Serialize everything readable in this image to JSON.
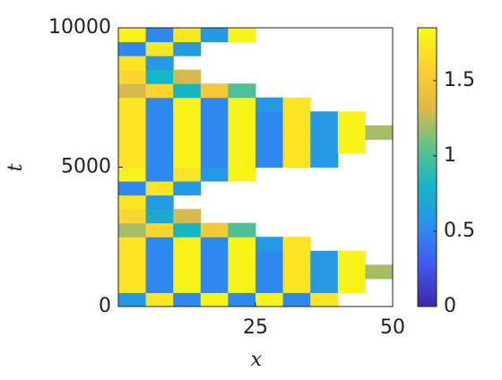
{
  "chart_data": {
    "type": "heatmap",
    "xlabel": "x",
    "ylabel": "t",
    "x": [
      2.5,
      7.5,
      12.5,
      17.5,
      22.5,
      27.5,
      32.5,
      37.5,
      42.5,
      47.5
    ],
    "y": [
      250,
      750,
      1250,
      1750,
      2250,
      2750,
      3250,
      3750,
      4250,
      4750,
      5250,
      5750,
      6250,
      6750,
      7250,
      7750,
      8250,
      8750,
      9250,
      9750
    ],
    "z": [
      [
        0.6,
        1.7,
        0.5,
        1.8,
        0.5,
        1.8,
        0.5,
        1.7,
        null,
        null
      ],
      [
        1.7,
        0.5,
        1.8,
        0.5,
        1.8,
        0.5,
        1.7,
        0.6,
        1.8,
        null
      ],
      [
        1.7,
        0.5,
        1.8,
        0.5,
        1.8,
        0.5,
        1.7,
        0.6,
        1.8,
        1.2
      ],
      [
        1.7,
        0.5,
        1.8,
        0.5,
        1.8,
        0.5,
        1.7,
        0.6,
        1.8,
        null
      ],
      [
        1.7,
        0.5,
        1.8,
        0.5,
        1.8,
        0.6,
        1.7,
        null,
        null,
        null
      ],
      [
        1.2,
        1.6,
        0.8,
        1.5,
        1.0,
        null,
        null,
        null,
        null,
        null
      ],
      [
        1.6,
        0.7,
        1.3,
        null,
        null,
        null,
        null,
        null,
        null,
        null
      ],
      [
        1.7,
        0.6,
        null,
        null,
        null,
        null,
        null,
        null,
        null,
        null
      ],
      [
        0.5,
        1.7,
        0.6,
        null,
        null,
        null,
        null,
        null,
        null,
        null
      ],
      [
        1.8,
        0.5,
        1.7,
        0.6,
        1.8,
        null,
        null,
        null,
        null,
        null
      ],
      [
        1.7,
        0.5,
        1.8,
        0.5,
        1.8,
        0.5,
        1.7,
        0.6,
        null,
        null
      ],
      [
        1.7,
        0.5,
        1.8,
        0.5,
        1.8,
        0.5,
        1.7,
        0.6,
        1.8,
        null
      ],
      [
        1.7,
        0.5,
        1.8,
        0.5,
        1.8,
        0.5,
        1.7,
        0.6,
        1.8,
        1.2
      ],
      [
        1.7,
        0.5,
        1.8,
        0.5,
        1.8,
        0.5,
        1.7,
        0.6,
        1.8,
        null
      ],
      [
        1.7,
        0.5,
        1.8,
        0.5,
        1.8,
        0.6,
        1.7,
        null,
        null,
        null
      ],
      [
        1.3,
        1.6,
        0.8,
        1.5,
        1.0,
        null,
        null,
        null,
        null,
        null
      ],
      [
        1.6,
        0.8,
        1.3,
        null,
        null,
        null,
        null,
        null,
        null,
        null
      ],
      [
        1.7,
        0.6,
        null,
        null,
        null,
        null,
        null,
        null,
        null,
        null
      ],
      [
        0.5,
        1.7,
        0.6,
        null,
        null,
        null,
        null,
        null,
        null,
        null
      ],
      [
        1.8,
        0.5,
        1.7,
        0.6,
        1.8,
        null,
        null,
        null,
        null,
        null
      ]
    ],
    "xlim": [
      0,
      50
    ],
    "xticks": [
      25,
      50
    ],
    "ylim": [
      0,
      10000
    ],
    "yticks": [
      0,
      5000,
      10000
    ],
    "clim": [
      0,
      1.85
    ],
    "cticks": [
      0,
      0.5,
      1,
      1.5
    ],
    "colormap": [
      "#3e26a8",
      "#4455ee",
      "#2d8ef0",
      "#14b5c4",
      "#5fc28a",
      "#e0b948",
      "#fbd22f",
      "#f9fb15"
    ]
  }
}
